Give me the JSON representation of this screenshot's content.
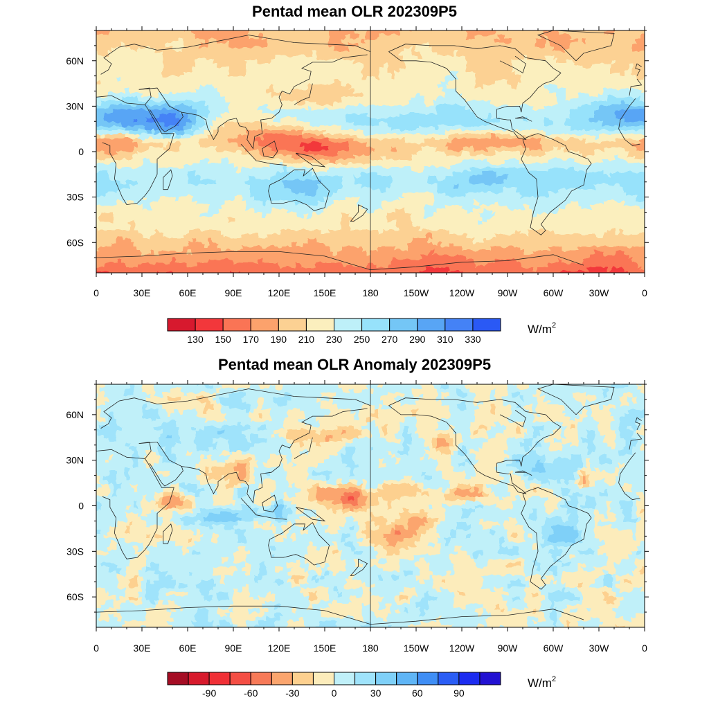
{
  "panels": [
    {
      "title": "Pentad mean OLR 202309P5",
      "field": "olr",
      "colorbar": {
        "colors": [
          "#d7192e",
          "#f2373b",
          "#fa7455",
          "#fca26c",
          "#fcd193",
          "#fbefbe",
          "#bef0f9",
          "#97e2fb",
          "#74c6f6",
          "#58a5f5",
          "#4482f6",
          "#2a59f5"
        ],
        "labels": [
          "130",
          "150",
          "170",
          "190",
          "210",
          "230",
          "250",
          "270",
          "290",
          "310",
          "330"
        ],
        "units": "W/m",
        "units_sup": "2"
      }
    },
    {
      "title": "Pentad mean OLR Anomaly 202309P5",
      "field": "anomaly",
      "colorbar": {
        "colors": [
          "#a50d24",
          "#d71a2c",
          "#f03036",
          "#f44e44",
          "#f77a58",
          "#fba56e",
          "#fdd08f",
          "#fcecbb",
          "#c0f0f9",
          "#9fe3fb",
          "#7fd0f8",
          "#5fb5f6",
          "#3f8ef5",
          "#2a5df5",
          "#1c2cf0",
          "#2211d2"
        ],
        "labels": [
          "-90",
          "-60",
          "-30",
          "0",
          "30",
          "60",
          "90"
        ],
        "label_slots": [
          2,
          4,
          6,
          8,
          10,
          12,
          14
        ],
        "units": "W/m",
        "units_sup": "2"
      }
    }
  ],
  "lon_labels": [
    "0",
    "30E",
    "60E",
    "90E",
    "120E",
    "150E",
    "180",
    "150W",
    "120W",
    "90W",
    "60W",
    "30W",
    "0"
  ],
  "lat_labels": [
    "60N",
    "30N",
    "0",
    "30S",
    "60S"
  ]
}
